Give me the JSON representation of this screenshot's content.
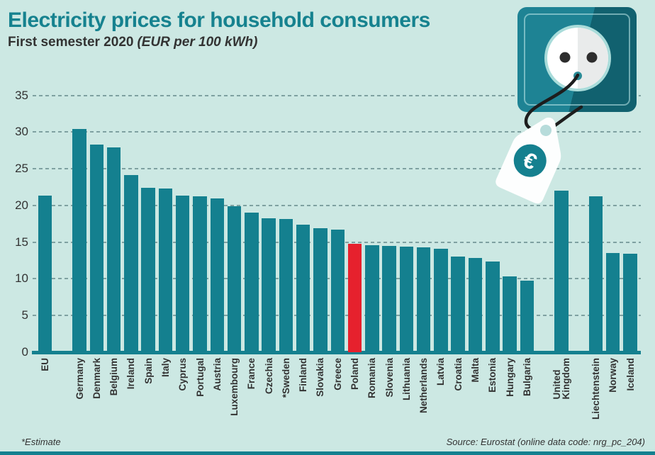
{
  "colors": {
    "background": "#cce8e3",
    "bar": "#14808f",
    "highlight": "#e6212d",
    "title": "#16828f",
    "grid": "#7fa1a1",
    "axis": "#14808f",
    "text": "#333333",
    "socket-light": "#1e8394",
    "socket-dark": "#11616f",
    "tag-white": "#fdfefe",
    "cord": "#1d1d1d"
  },
  "icons": {
    "illustration": "power-socket-with-euro-price-tag",
    "tag_symbol": "euro-sign"
  },
  "chart_data": {
    "type": "bar",
    "title": "Electricity prices for household consumers",
    "subtitle": "First semester 2020",
    "unit_label": "(EUR per 100 kWh)",
    "ylabel": "EUR per 100 kWh",
    "xlabel": "",
    "ylim": [
      0,
      35
    ],
    "yticks": [
      0,
      5,
      10,
      15,
      20,
      25,
      30,
      35
    ],
    "grid": "horizontal-dashed",
    "legend": "none",
    "highlight_category": "Poland",
    "footnote": "*Estimate",
    "source": "Source: Eurostat (online data code: nrg_pc_204)",
    "bars": [
      {
        "label": "EU",
        "value": 21.3
      },
      {
        "label": "Germany",
        "value": 30.4,
        "gap_before": true
      },
      {
        "label": "Denmark",
        "value": 28.3
      },
      {
        "label": "Belgium",
        "value": 27.9
      },
      {
        "label": "Ireland",
        "value": 24.1
      },
      {
        "label": "Spain",
        "value": 22.4
      },
      {
        "label": "Italy",
        "value": 22.3
      },
      {
        "label": "Cyprus",
        "value": 21.3
      },
      {
        "label": "Portugal",
        "value": 21.2
      },
      {
        "label": "Austria",
        "value": 21.0
      },
      {
        "label": "Luxembourg",
        "value": 19.9
      },
      {
        "label": "France",
        "value": 19.0
      },
      {
        "label": "Czechia",
        "value": 18.3
      },
      {
        "label": "*Sweden",
        "value": 18.2
      },
      {
        "label": "Finland",
        "value": 17.4
      },
      {
        "label": "Slovakia",
        "value": 16.9
      },
      {
        "label": "Greece",
        "value": 16.7
      },
      {
        "label": "Poland",
        "value": 14.8,
        "highlight": true
      },
      {
        "label": "Romania",
        "value": 14.6
      },
      {
        "label": "Slovenia",
        "value": 14.5
      },
      {
        "label": "Lithuania",
        "value": 14.4
      },
      {
        "label": "Netherlands",
        "value": 14.3
      },
      {
        "label": "Latvia",
        "value": 14.1
      },
      {
        "label": "Croatia",
        "value": 13.0
      },
      {
        "label": "Malta",
        "value": 12.8
      },
      {
        "label": "Estonia",
        "value": 12.4
      },
      {
        "label": "Hungary",
        "value": 10.3
      },
      {
        "label": "Bulgaria",
        "value": 9.8
      },
      {
        "label": "United\nKingdom",
        "value": 22.0,
        "gap_before": true
      },
      {
        "label": "Liechtenstein",
        "value": 21.2,
        "gap_before": true
      },
      {
        "label": "Norway",
        "value": 13.5
      },
      {
        "label": "Iceland",
        "value": 13.4
      }
    ]
  }
}
